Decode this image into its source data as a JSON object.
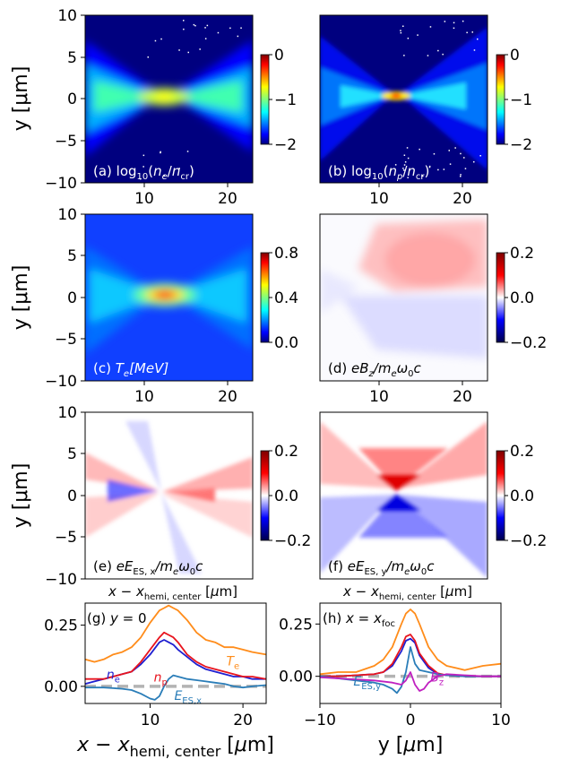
{
  "figure": {
    "ylabel": "y [μm]",
    "xlabel_small": "x − x_hemi, center [μm]"
  },
  "colors": {
    "n_e": "#1f1fd0",
    "n_p": "#e8141e",
    "T_e": "#ff8c1a",
    "E_ES": "#2a7db8",
    "B_z": "#c020c0",
    "zero_line": "#b3b3b3"
  },
  "chart_data": [
    {
      "id": "a",
      "type": "heatmap",
      "label": "(a) log10(ne/ncr)",
      "label_color": "#ffffff",
      "field": "density_ne",
      "x_ticks": [
        10,
        20
      ],
      "y_ticks": [
        10,
        5,
        0,
        -5,
        -10
      ],
      "xlim": [
        3,
        23
      ],
      "ylim": [
        -10,
        10
      ],
      "colorbar": {
        "colormap": "jet",
        "range": [
          -2,
          0
        ],
        "ticks": [
          "0",
          "−1",
          "−2"
        ]
      }
    },
    {
      "id": "b",
      "type": "heatmap",
      "label": "(b) log10(np/ncr)",
      "label_color": "#ffffff",
      "field": "density_np",
      "x_ticks": [
        10,
        20
      ],
      "y_ticks": [],
      "xlim": [
        3,
        23
      ],
      "ylim": [
        -10,
        10
      ],
      "colorbar": {
        "colormap": "jet",
        "range": [
          -2,
          0
        ],
        "ticks": [
          "0",
          "−1",
          "−2"
        ]
      }
    },
    {
      "id": "c",
      "type": "heatmap",
      "label": "(c) Te[MeV]",
      "label_color": "#ffffff",
      "field": "temperature",
      "x_ticks": [
        10,
        20
      ],
      "y_ticks": [
        10,
        5,
        0,
        -5,
        -10
      ],
      "xlim": [
        3,
        23
      ],
      "ylim": [
        -10,
        10
      ],
      "colorbar": {
        "colormap": "jet",
        "range": [
          0,
          0.8
        ],
        "ticks": [
          "0.8",
          "0.4",
          "0.0"
        ]
      }
    },
    {
      "id": "d",
      "type": "heatmap",
      "label": "(d) eBz/meω0c",
      "label_color": "#000000",
      "field": "bz",
      "x_ticks": [
        10,
        20
      ],
      "y_ticks": [],
      "xlim": [
        3,
        23
      ],
      "ylim": [
        -10,
        10
      ],
      "colorbar": {
        "colormap": "seismic",
        "range": [
          -0.2,
          0.2
        ],
        "ticks": [
          "0.2",
          "0.0",
          "−0.2"
        ]
      }
    },
    {
      "id": "e",
      "type": "heatmap",
      "label": "(e) eEES,x/meω0c",
      "label_color": "#000000",
      "field": "esx",
      "x_ticks": [],
      "y_ticks": [
        10,
        5,
        0,
        -5,
        -10
      ],
      "xlim": [
        3,
        23
      ],
      "ylim": [
        -10,
        10
      ],
      "xlabel": "x − x_hemi, center [μm]",
      "colorbar": {
        "colormap": "seismic",
        "range": [
          -0.2,
          0.2
        ],
        "ticks": [
          "0.2",
          "0.0",
          "−0.2"
        ]
      }
    },
    {
      "id": "f",
      "type": "heatmap",
      "label": "(f) eEES,y/meω0c",
      "label_color": "#000000",
      "field": "esy",
      "x_ticks": [],
      "y_ticks": [],
      "xlim": [
        3,
        23
      ],
      "ylim": [
        -10,
        10
      ],
      "xlabel": "x − x_hemi, center [μm]",
      "colorbar": {
        "colormap": "seismic",
        "range": [
          -0.2,
          0.2
        ],
        "ticks": [
          "0.2",
          "0.0",
          "−0.2"
        ]
      }
    },
    {
      "id": "g",
      "type": "line",
      "title": "(g) y = 0",
      "xlabel": "x − x_hemi, center [μm]",
      "xlim": [
        3,
        22.5
      ],
      "ylim": [
        -0.07,
        0.34
      ],
      "x_ticks": [
        10,
        20
      ],
      "y_ticks": [
        "0.25",
        "0.00"
      ],
      "series": [
        {
          "name": "T_e",
          "color_key": "T_e",
          "x": [
            3,
            4,
            5,
            6,
            7,
            8,
            9,
            10,
            11,
            11.5,
            12,
            12.5,
            13,
            14,
            15,
            16,
            17,
            18,
            19,
            20,
            21,
            22.5
          ],
          "y": [
            0.11,
            0.1,
            0.11,
            0.13,
            0.14,
            0.16,
            0.2,
            0.26,
            0.31,
            0.32,
            0.33,
            0.32,
            0.31,
            0.27,
            0.22,
            0.19,
            0.18,
            0.16,
            0.16,
            0.15,
            0.14,
            0.13
          ]
        },
        {
          "name": "n_e",
          "color_key": "n_e",
          "x": [
            3,
            4,
            5,
            6,
            7,
            8,
            9,
            10,
            11,
            11.5,
            12,
            12.5,
            13,
            14,
            15,
            16,
            17,
            18,
            19,
            20,
            21,
            22.5
          ],
          "y": [
            0.01,
            0.02,
            0.03,
            0.04,
            0.05,
            0.06,
            0.09,
            0.13,
            0.18,
            0.19,
            0.18,
            0.17,
            0.15,
            0.12,
            0.09,
            0.07,
            0.06,
            0.05,
            0.04,
            0.04,
            0.03,
            0.03
          ]
        },
        {
          "name": "n_p",
          "color_key": "n_p",
          "x": [
            3,
            4,
            5,
            6,
            7,
            8,
            9,
            10,
            11,
            11.5,
            12,
            12.5,
            13,
            14,
            15,
            16,
            17,
            18,
            19,
            20,
            21,
            22.5
          ],
          "y": [
            0.03,
            0.03,
            0.03,
            0.04,
            0.05,
            0.06,
            0.1,
            0.15,
            0.2,
            0.22,
            0.21,
            0.2,
            0.18,
            0.13,
            0.1,
            0.08,
            0.07,
            0.06,
            0.05,
            0.04,
            0.04,
            0.03
          ]
        },
        {
          "name": "E_ES,x",
          "color_key": "E_ES",
          "x": [
            3,
            5,
            7,
            8,
            9,
            10,
            10.5,
            11,
            11.5,
            12,
            12.5,
            13,
            14,
            15,
            16,
            17,
            18,
            19,
            20,
            21,
            22.5
          ],
          "y": [
            -0.005,
            -0.005,
            -0.01,
            -0.015,
            -0.03,
            -0.05,
            -0.055,
            -0.04,
            0.0,
            0.03,
            0.045,
            0.04,
            0.03,
            0.025,
            0.02,
            0.015,
            0.01,
            0.0,
            -0.005,
            0.0,
            0.005
          ]
        }
      ],
      "zero_line": {
        "y": 0,
        "style": "dashed"
      },
      "annotations": [
        {
          "text": "T_e",
          "color_key": "T_e",
          "at": [
            18.2,
            0.085
          ]
        },
        {
          "text": "n_e",
          "color_key": "n_e",
          "at": [
            5.3,
            0.03
          ]
        },
        {
          "text": "n_p",
          "color_key": "n_p",
          "at": [
            10.4,
            0.02
          ]
        },
        {
          "text": "E_ES,x",
          "color_key": "E_ES",
          "at": [
            12.6,
            -0.055
          ]
        }
      ]
    },
    {
      "id": "h",
      "type": "line",
      "title": "(h) x = x_foc",
      "xlabel": "y [μm]",
      "xlim": [
        -10,
        10
      ],
      "ylim": [
        -0.13,
        0.35
      ],
      "x_ticks": [
        -10,
        0,
        10
      ],
      "y_ticks": [
        "0.25",
        "0.00"
      ],
      "series": [
        {
          "name": "T_e",
          "color_key": "T_e",
          "x": [
            -10,
            -8,
            -6,
            -4,
            -3,
            -2,
            -1,
            -0.5,
            0,
            0.5,
            1,
            2,
            3,
            4,
            6,
            8,
            10
          ],
          "y": [
            0.01,
            0.02,
            0.02,
            0.05,
            0.08,
            0.14,
            0.25,
            0.3,
            0.32,
            0.3,
            0.25,
            0.14,
            0.08,
            0.05,
            0.03,
            0.05,
            0.06
          ]
        },
        {
          "name": "n_e",
          "color_key": "n_e",
          "x": [
            -10,
            -8,
            -6,
            -4,
            -3,
            -2,
            -1,
            -0.5,
            0,
            0.5,
            1,
            2,
            3,
            4,
            6,
            8,
            10
          ],
          "y": [
            0.0,
            0.0,
            0.005,
            0.01,
            0.02,
            0.05,
            0.12,
            0.17,
            0.18,
            0.16,
            0.1,
            0.04,
            0.01,
            0.005,
            0.0,
            0.0,
            0.0
          ]
        },
        {
          "name": "n_p",
          "color_key": "n_p",
          "x": [
            -10,
            -8,
            -6,
            -4,
            -3,
            -2,
            -1,
            -0.5,
            0,
            0.5,
            1,
            2,
            3,
            4,
            6,
            8,
            10
          ],
          "y": [
            0.0,
            0.0,
            0.005,
            0.01,
            0.02,
            0.06,
            0.14,
            0.19,
            0.2,
            0.17,
            0.11,
            0.05,
            0.015,
            0.005,
            0.0,
            0.0,
            0.0
          ]
        },
        {
          "name": "E_ES,y",
          "color_key": "E_ES",
          "x": [
            -10,
            -8,
            -6,
            -4,
            -3,
            -2,
            -1.5,
            -1,
            -0.5,
            0,
            0.5,
            1,
            2,
            3,
            4,
            6,
            8,
            10
          ],
          "y": [
            0.0,
            -0.01,
            -0.02,
            -0.03,
            -0.04,
            -0.06,
            -0.08,
            -0.05,
            0.02,
            0.14,
            0.06,
            0.03,
            0.02,
            0.01,
            0.005,
            0.0,
            0.0,
            0.0
          ]
        },
        {
          "name": "B_z",
          "color_key": "B_z",
          "x": [
            -10,
            -8,
            -6,
            -4,
            -2,
            -1,
            -0.5,
            0,
            0.5,
            1,
            1.5,
            2,
            3,
            4,
            6,
            8,
            10
          ],
          "y": [
            -0.005,
            -0.01,
            -0.015,
            -0.02,
            -0.03,
            -0.04,
            -0.02,
            0.02,
            -0.04,
            -0.07,
            -0.06,
            -0.03,
            0.0,
            0.01,
            0.005,
            0.0,
            0.0
          ]
        }
      ],
      "zero_line": {
        "y": 0,
        "style": "dashed"
      },
      "annotations": [
        {
          "text": "E_ES,y",
          "color_key": "E_ES",
          "at": [
            -6.3,
            -0.045
          ]
        },
        {
          "text": "B_z",
          "color_key": "B_z",
          "at": [
            2.2,
            -0.025
          ]
        }
      ]
    }
  ]
}
